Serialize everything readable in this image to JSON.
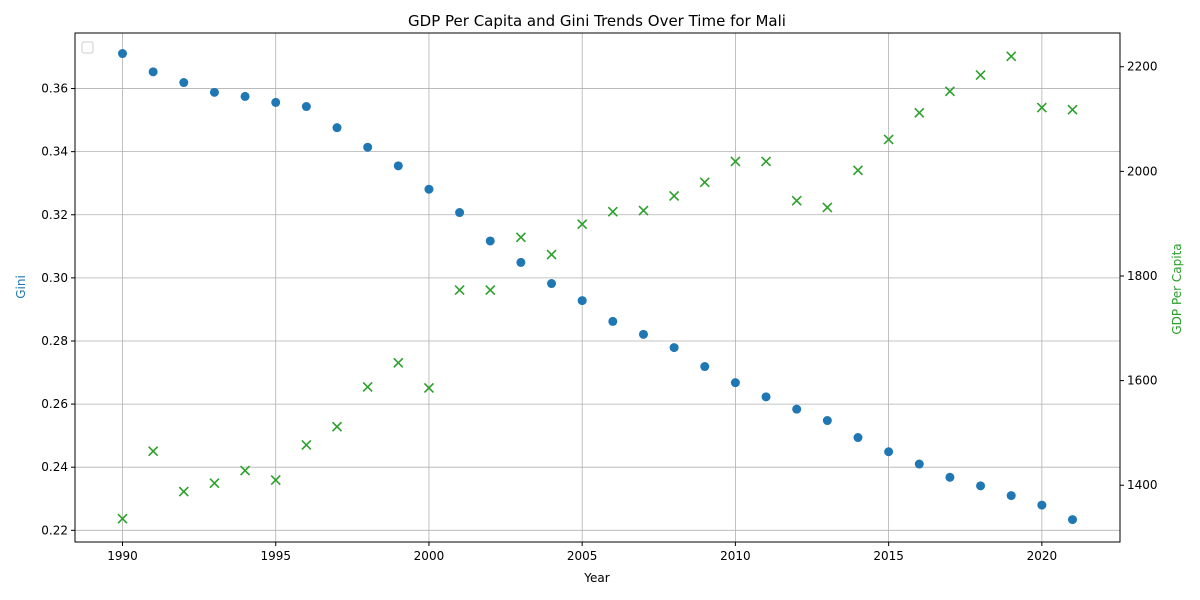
{
  "chart_data": {
    "type": "scatter",
    "title": "GDP Per Capita and Gini Trends Over Time for Mali",
    "xlabel": "Year",
    "ylabel_left": "Gini",
    "ylabel_right": "GDP Per Capita",
    "xlim": [
      1988.45,
      2022.55
    ],
    "ylim_left": [
      0.2163,
      0.3776
    ],
    "ylim_right": [
      1291.5,
      2264.5
    ],
    "x_ticks": [
      1990,
      1995,
      2000,
      2005,
      2010,
      2015,
      2020
    ],
    "y_left_ticks": [
      0.22,
      0.24,
      0.26,
      0.28,
      0.3,
      0.32,
      0.34,
      0.36
    ],
    "y_right_ticks": [
      1400,
      1600,
      1800,
      2000,
      2200
    ],
    "grid": true,
    "legend": "top-left (empty)",
    "x": [
      1990,
      1991,
      1992,
      1993,
      1994,
      1995,
      1996,
      1997,
      1998,
      1999,
      2000,
      2001,
      2002,
      2003,
      2004,
      2005,
      2006,
      2007,
      2008,
      2009,
      2010,
      2011,
      2012,
      2013,
      2014,
      2015,
      2016,
      2017,
      2018,
      2019,
      2020,
      2021
    ],
    "series": [
      {
        "axis": "left",
        "marker": "circle",
        "color": "#1f77b4",
        "values": [
          0.3711,
          0.3653,
          0.3619,
          0.3588,
          0.3575,
          0.3556,
          0.3543,
          0.3476,
          0.3414,
          0.3355,
          0.3281,
          0.3207,
          0.3117,
          0.3049,
          0.2982,
          0.2928,
          0.2862,
          0.2821,
          0.2779,
          0.2719,
          0.2668,
          0.2623,
          0.2584,
          0.2548,
          0.2494,
          0.2449,
          0.241,
          0.2368,
          0.2341,
          0.231,
          0.228,
          0.2234
        ]
      },
      {
        "axis": "right",
        "marker": "x",
        "color": "#2ca02c",
        "values": [
          1336,
          1465,
          1388,
          1404,
          1428,
          1410,
          1477,
          1512,
          1588,
          1634,
          1586,
          1773,
          1773,
          1874,
          1841,
          1899,
          1923,
          1925,
          1953,
          1979,
          2019,
          2019,
          1944,
          1931,
          2002,
          2061,
          2112,
          2153,
          2184,
          2220,
          2122,
          2118
        ]
      }
    ]
  }
}
